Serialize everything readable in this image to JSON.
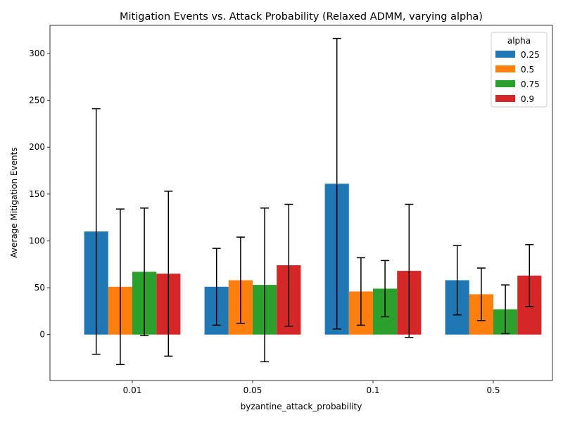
{
  "chart_data": {
    "type": "bar",
    "title": "Mitigation Events vs. Attack Probability (Relaxed ADMM, varying alpha)",
    "xlabel": "byzantine_attack_probability",
    "ylabel": "Average Mitigation Events",
    "categories": [
      "0.01",
      "0.05",
      "0.1",
      "0.5"
    ],
    "ylim": [
      -49,
      330
    ],
    "yticks": [
      0,
      50,
      100,
      150,
      200,
      250,
      300
    ],
    "legend": {
      "title": "alpha",
      "placement": "top-right"
    },
    "error_bars": true,
    "series": [
      {
        "name": "0.25",
        "color": "#1f77b4",
        "values": [
          110,
          51,
          161,
          58
        ],
        "error": [
          131,
          41,
          155,
          37
        ]
      },
      {
        "name": "0.5",
        "color": "#ff7f0e",
        "values": [
          51,
          58,
          46,
          43
        ],
        "error": [
          83,
          46,
          36,
          28
        ]
      },
      {
        "name": "0.75",
        "color": "#2ca02c",
        "values": [
          67,
          53,
          49,
          27
        ],
        "error": [
          68,
          82,
          30,
          26
        ]
      },
      {
        "name": "0.9",
        "color": "#d62728",
        "values": [
          65,
          74,
          68,
          63
        ],
        "error": [
          88,
          65,
          71,
          33
        ]
      }
    ]
  }
}
